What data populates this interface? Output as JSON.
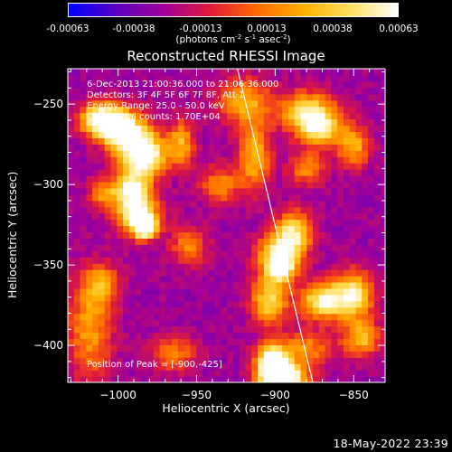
{
  "colorbar": {
    "ticks": [
      "-0.00063",
      "-0.00038",
      "-0.00013",
      "0.00013",
      "0.00038",
      "0.00063"
    ],
    "units_prefix": "(photons cm",
    "units_exp1": "-2",
    "units_mid": " s",
    "units_exp2": "-1",
    "units_mid2": " asec",
    "units_exp3": "-2",
    "units_suffix": ")",
    "colormap": [
      "#0000ff",
      "#5a00c0",
      "#a0009a",
      "#e01a3a",
      "#ff6a00",
      "#ffb000",
      "#ffe060",
      "#ffffff"
    ]
  },
  "footer": {
    "timestamp": "18-May-2022 23:39"
  },
  "chart_data": {
    "type": "heatmap",
    "title": "Reconstructed RHESSI Image",
    "xlabel": "Heliocentric X (arcsec)",
    "ylabel": "Heliocentric Y (arcsec)",
    "xlim": [
      -1032,
      -830
    ],
    "ylim": [
      -423,
      -228
    ],
    "xticks": [
      -1000,
      -950,
      -900,
      -850
    ],
    "yticks": [
      -250,
      -300,
      -350,
      -400
    ],
    "xtick_labels": [
      "−1000",
      "−950",
      "−900",
      "−850"
    ],
    "ytick_labels": [
      "−250",
      "−300",
      "−350",
      "−400"
    ],
    "colorbar_range": [
      -0.00063,
      0.00063
    ],
    "limb_line": [
      [
        -924,
        -228
      ],
      [
        -876,
        -423
      ]
    ],
    "annotations": [
      "6-Dec-2013 21:00:36.000 to 21:06:36.000",
      "Detectors: 3F 4F 5F 6F 7F 8F, Att 1",
      "Energy Range: 25.0 - 50.0 keV",
      "Clean    Total counts: 1.70E+04"
    ],
    "peak_label": "Position of Peak = [-900,-425]",
    "peak": [
      -900,
      -425
    ],
    "grid": false
  }
}
